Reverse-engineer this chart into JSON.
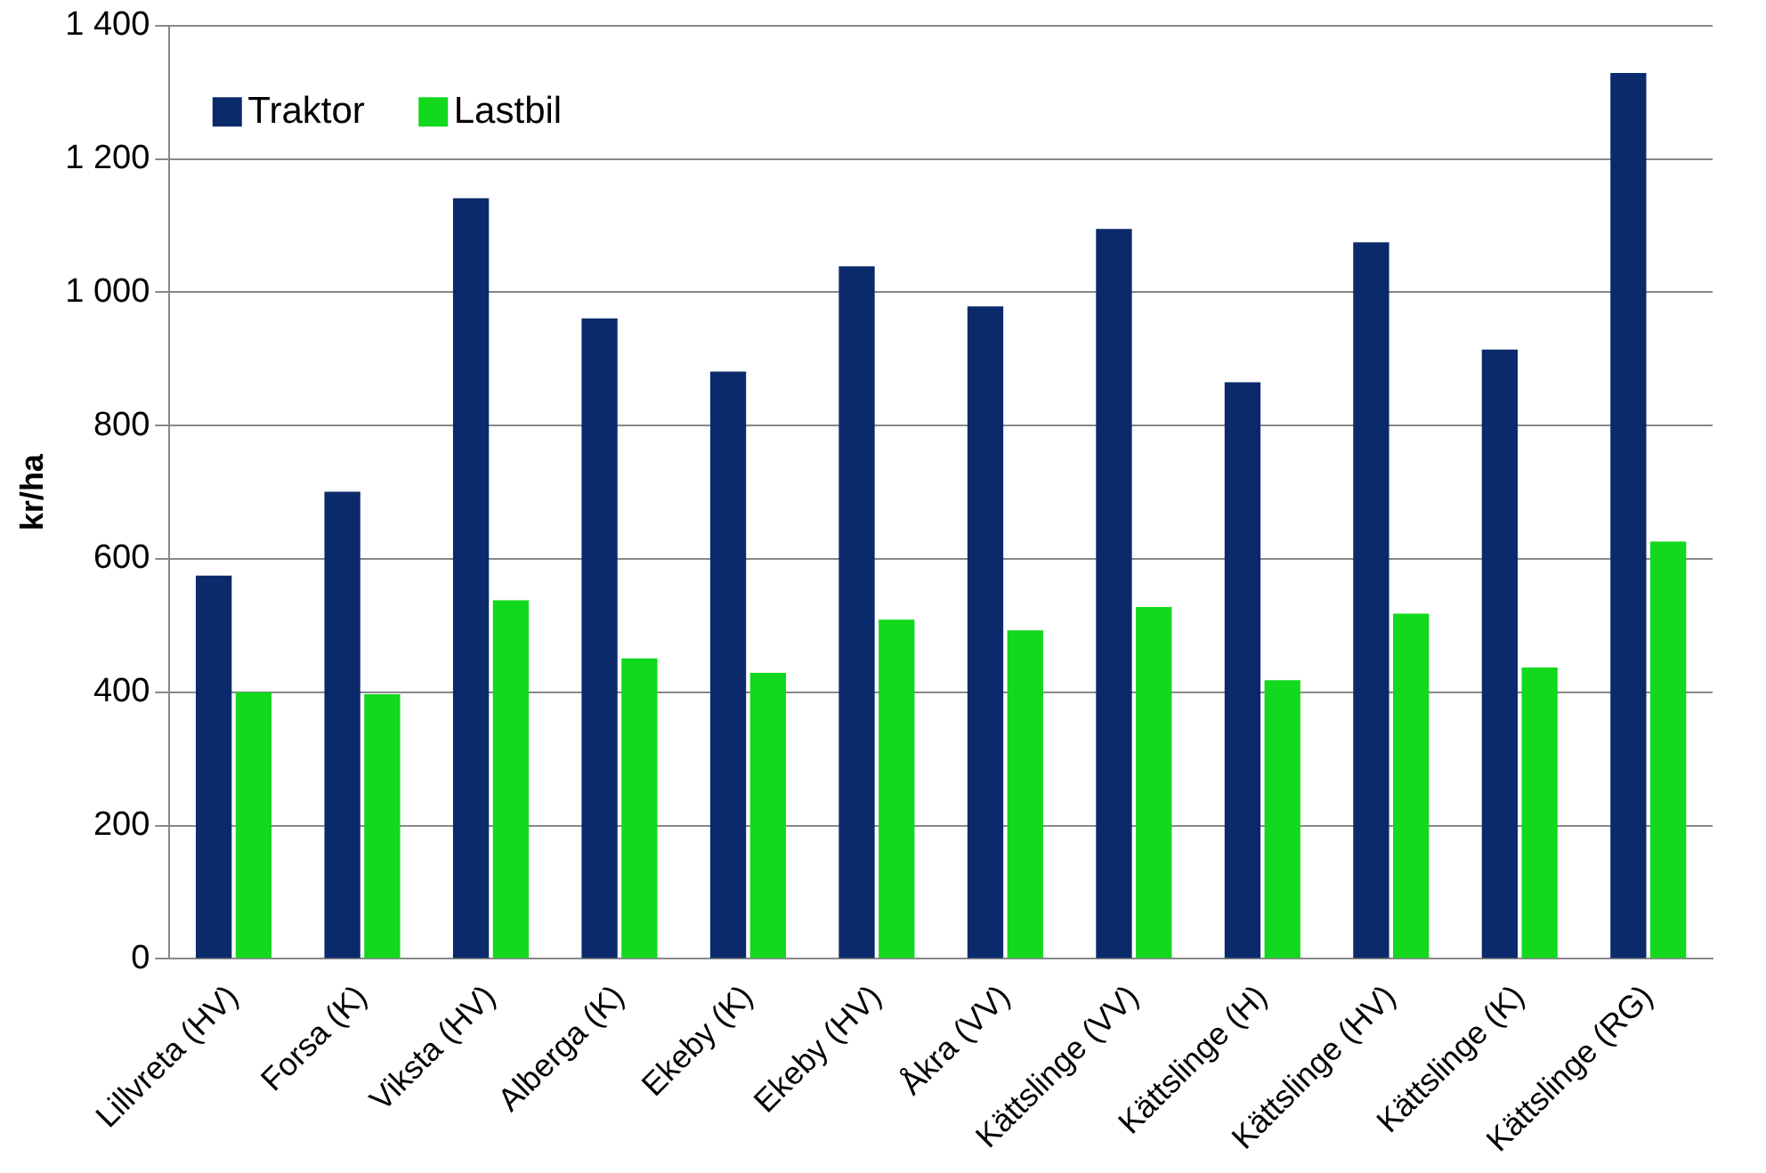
{
  "chart_data": {
    "type": "bar",
    "ylabel": "kr/ha",
    "categories": [
      "Lillvreta (HV)",
      "Forsa (K)",
      "Viksta (HV)",
      "Alberga (K)",
      "Ekeby (K)",
      "Ekeby (HV)",
      "Åkra (VV)",
      "Kättslinge (VV)",
      "Kättslinge (H)",
      "Kättslinge (HV)",
      "Kättslinge (K)",
      "Kättslinge (RG)"
    ],
    "series": [
      {
        "name": "Traktor",
        "color": "#0a2a6b",
        "values": [
          575,
          701,
          1141,
          961,
          881,
          1039,
          979,
          1095,
          865,
          1075,
          914,
          1329
        ]
      },
      {
        "name": "Lastbil",
        "color": "#12d81e",
        "values": [
          400,
          397,
          538,
          451,
          429,
          509,
          493,
          528,
          418,
          518,
          437,
          626
        ]
      }
    ],
    "ylim": [
      0,
      1400
    ],
    "yticks": [
      {
        "value": 0,
        "label": "0"
      },
      {
        "value": 200,
        "label": "200"
      },
      {
        "value": 400,
        "label": "400"
      },
      {
        "value": 600,
        "label": "600"
      },
      {
        "value": 800,
        "label": "800"
      },
      {
        "value": 1000,
        "label": "1 000"
      },
      {
        "value": 1200,
        "label": "1 200"
      },
      {
        "value": 1400,
        "label": "1 400"
      }
    ],
    "grid": "y",
    "legend": "top left"
  }
}
